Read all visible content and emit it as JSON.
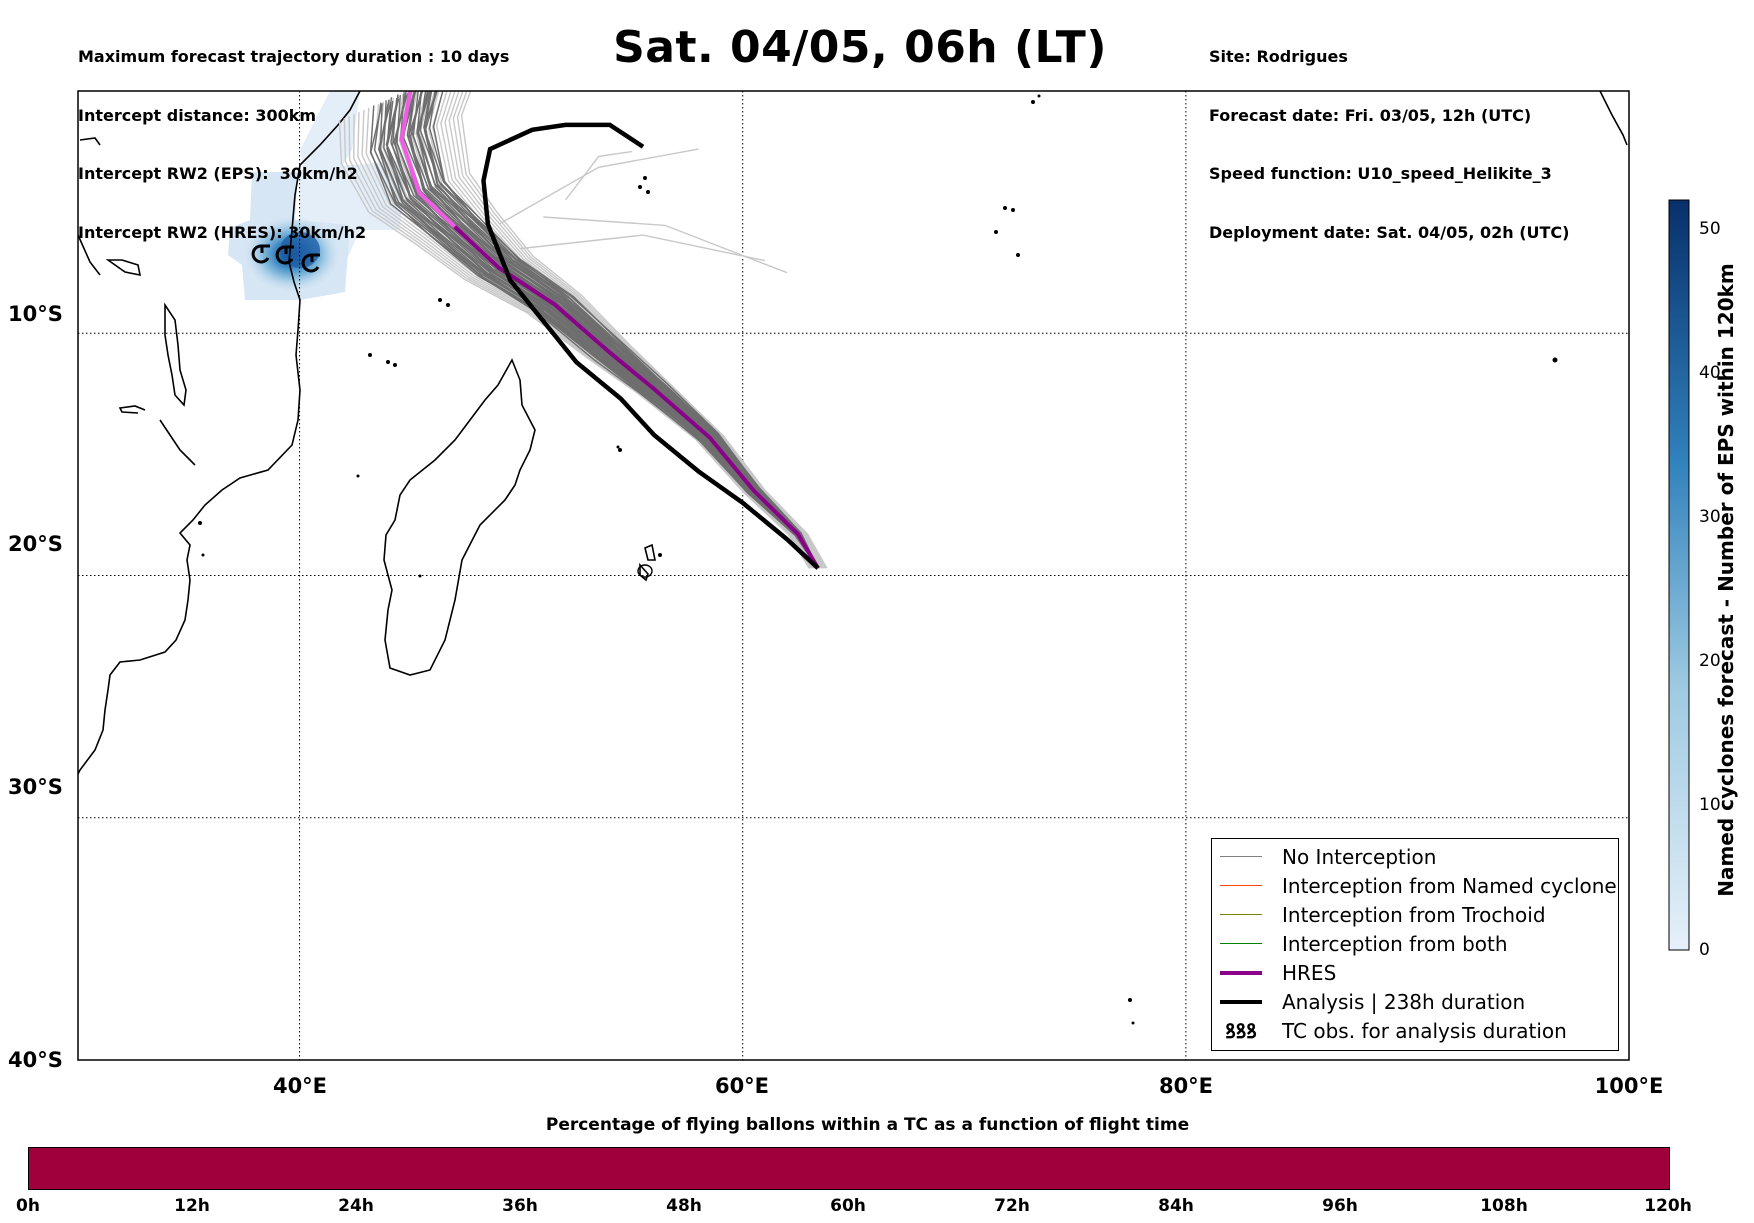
{
  "header_left": [
    "Maximum forecast trajectory duration : 10 days",
    "Intercept distance: 300km",
    "Intercept RW2 (EPS):  30km/h2",
    "Intercept RW2 (HRES): 30km/h2"
  ],
  "title": "Sat. 04/05, 06h (LT)",
  "header_right": [
    "Site: Rodrigues",
    "Forecast date: Fri. 03/05, 12h (UTC)",
    "Speed function: U10_speed_Helikite_3",
    "Deployment date: Sat. 04/05, 02h (UTC)"
  ],
  "map": {
    "lon_range": [
      30,
      100
    ],
    "lat_range": [
      0,
      -40
    ],
    "lat_labels": [
      "10°S",
      "20°S",
      "30°S",
      "40°S"
    ],
    "lon_labels": [
      "40°E",
      "60°E",
      "80°E",
      "100°E"
    ],
    "grid": "dotted"
  },
  "legend": {
    "items": [
      {
        "label": "No Interception",
        "color": "#808080",
        "kind": "thin"
      },
      {
        "label": "Interception from Named cyclone",
        "color": "#ff4500",
        "kind": "thin"
      },
      {
        "label": "Interception from Trochoid",
        "color": "#808000",
        "kind": "thin"
      },
      {
        "label": "Interception from both",
        "color": "#008000",
        "kind": "thin"
      },
      {
        "label": "HRES",
        "color": "#8b008b",
        "kind": "thick"
      },
      {
        "label": "Analysis | 238h duration",
        "color": "#000000",
        "kind": "thick"
      },
      {
        "label": "TC obs. for analysis duration",
        "color": "#000000",
        "kind": "symbol",
        "symbol": "ꝸꝸꝸ"
      }
    ]
  },
  "colorbar": {
    "label": "Named cyclones forecast - Number of EPS within 120km",
    "ticks": [
      "0",
      "10",
      "20",
      "30",
      "40",
      "50"
    ],
    "range": [
      0,
      52
    ]
  },
  "flight_bar": {
    "title": "Percentage of flying ballons within a TC as a function of flight time",
    "ticks": [
      "0h",
      "12h",
      "24h",
      "36h",
      "48h",
      "60h",
      "72h",
      "84h",
      "96h",
      "108h",
      "120h"
    ],
    "color": "#a0003c"
  },
  "trajectories": {
    "start": {
      "lon": 63.4,
      "lat": -19.7
    },
    "hres": [
      [
        63.4,
        -19.7
      ],
      [
        62.5,
        -18.3
      ],
      [
        60.5,
        -16.5
      ],
      [
        58.5,
        -14.3
      ],
      [
        56,
        -12.3
      ],
      [
        54,
        -10.8
      ],
      [
        51.5,
        -8.8
      ],
      [
        49,
        -7.3
      ],
      [
        47,
        -5.6
      ],
      [
        45.4,
        -4.2
      ],
      [
        44.6,
        -2.0
      ],
      [
        45,
        0
      ]
    ],
    "analysis": [
      [
        63.4,
        -19.7
      ],
      [
        62,
        -18.5
      ],
      [
        60,
        -17.0
      ],
      [
        58,
        -15.7
      ],
      [
        56,
        -14.2
      ],
      [
        54.5,
        -12.7
      ],
      [
        52.5,
        -11.2
      ],
      [
        51,
        -9.5
      ],
      [
        49.5,
        -7.8
      ],
      [
        48.5,
        -5.5
      ],
      [
        48.3,
        -3.7
      ],
      [
        48.6,
        -2.4
      ],
      [
        50.5,
        -1.6
      ],
      [
        52,
        -1.4
      ],
      [
        54,
        -1.4
      ],
      [
        55.5,
        -2.3
      ]
    ]
  }
}
